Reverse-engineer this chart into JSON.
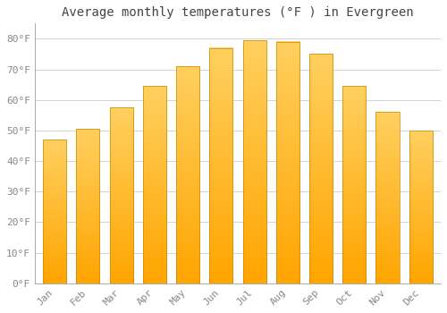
{
  "title": "Average monthly temperatures (°F ) in Evergreen",
  "months": [
    "Jan",
    "Feb",
    "Mar",
    "Apr",
    "May",
    "Jun",
    "Jul",
    "Aug",
    "Sep",
    "Oct",
    "Nov",
    "Dec"
  ],
  "values": [
    47,
    50.5,
    57.5,
    64.5,
    71,
    77,
    79.5,
    79,
    75,
    64.5,
    56,
    50
  ],
  "bar_color_top": "#FFB300",
  "bar_color_bottom": "#FFD700",
  "bar_edge_color": "#CC8800",
  "background_color": "#FFFFFF",
  "plot_bg_color": "#FFFFFF",
  "grid_color": "#CCCCCC",
  "ylim": [
    0,
    85
  ],
  "yticks": [
    0,
    10,
    20,
    30,
    40,
    50,
    60,
    70,
    80
  ],
  "title_fontsize": 10,
  "tick_fontsize": 8,
  "title_color": "#444444",
  "tick_color": "#888888",
  "bar_width": 0.7
}
